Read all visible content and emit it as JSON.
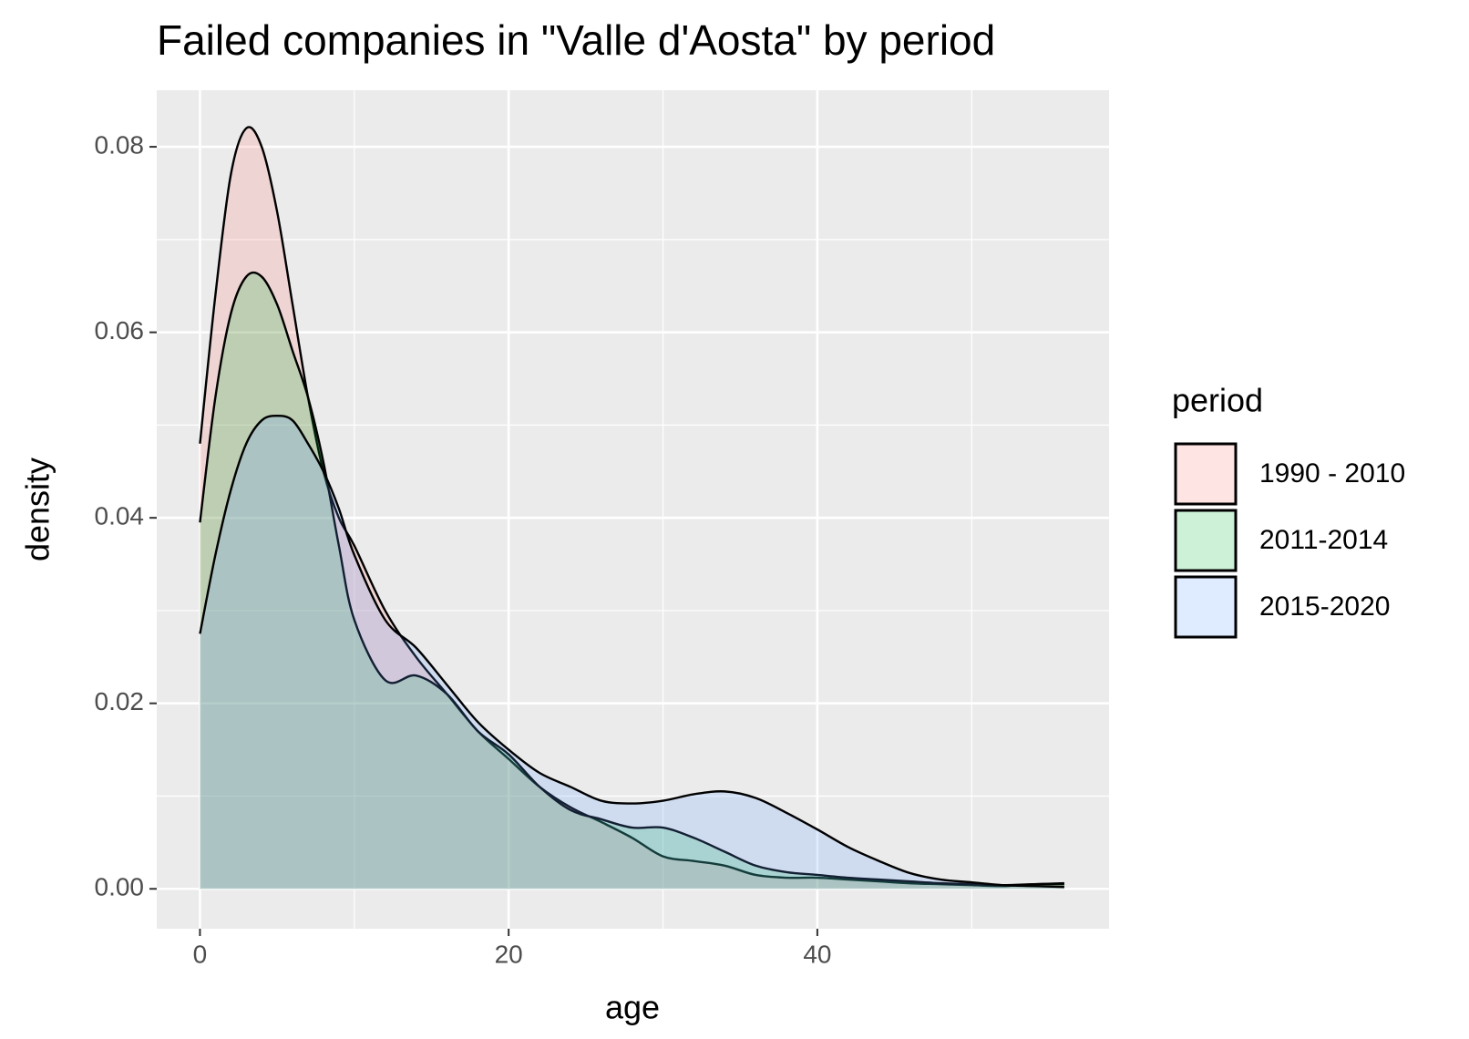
{
  "chart_data": {
    "type": "density",
    "title": "Failed companies in \"Valle d'Aosta\" by period",
    "x_label": "age",
    "y_label": "density",
    "legend_title": "period",
    "x": [
      0,
      1,
      2,
      3,
      4,
      5,
      6,
      7,
      8,
      9,
      10,
      12,
      14,
      16,
      18,
      20,
      22,
      24,
      26,
      28,
      30,
      32,
      34,
      36,
      38,
      40,
      42,
      44,
      46,
      48,
      50,
      52,
      54,
      56
    ],
    "series": [
      {
        "name": "1990 - 2010",
        "color": "#F8766D",
        "values": [
          0.048,
          0.064,
          0.077,
          0.082,
          0.08,
          0.073,
          0.063,
          0.053,
          0.045,
          0.04,
          0.037,
          0.03,
          0.025,
          0.021,
          0.017,
          0.014,
          0.011,
          0.0088,
          0.0072,
          0.0055,
          0.0035,
          0.003,
          0.0025,
          0.0015,
          0.0012,
          0.0012,
          0.001,
          0.0008,
          0.0006,
          0.0005,
          0.0004,
          0.0003,
          0.0005,
          0.0005
        ]
      },
      {
        "name": "2011-2014",
        "color": "#00BA38",
        "values": [
          0.0395,
          0.053,
          0.062,
          0.066,
          0.066,
          0.063,
          0.058,
          0.053,
          0.046,
          0.037,
          0.029,
          0.0225,
          0.023,
          0.021,
          0.017,
          0.0145,
          0.011,
          0.0085,
          0.0075,
          0.0066,
          0.0066,
          0.0055,
          0.004,
          0.0025,
          0.0018,
          0.0015,
          0.0012,
          0.001,
          0.0008,
          0.0006,
          0.0005,
          0.0004,
          0.0005,
          0.0006
        ]
      },
      {
        "name": "2015-2020",
        "color": "#619CFF",
        "values": [
          0.0275,
          0.036,
          0.043,
          0.048,
          0.0505,
          0.051,
          0.0505,
          0.048,
          0.045,
          0.041,
          0.036,
          0.029,
          0.026,
          0.022,
          0.018,
          0.015,
          0.0125,
          0.011,
          0.0095,
          0.0092,
          0.0095,
          0.0102,
          0.0105,
          0.0098,
          0.0082,
          0.0064,
          0.0045,
          0.003,
          0.0017,
          0.001,
          0.0007,
          0.0004,
          0.0003,
          0.0002
        ]
      }
    ],
    "fill_opacity": 0.2,
    "outline_color": "#000000",
    "xlim": [
      -2.8,
      58.9
    ],
    "ylim": [
      -0.0043,
      0.0861
    ],
    "xticks": [
      0,
      20,
      40
    ],
    "yticks": [
      {
        "value": 0,
        "label": "0.00"
      },
      0.02,
      0.04,
      0.06,
      0.08
    ],
    "grid": true,
    "legend_position": "right"
  }
}
